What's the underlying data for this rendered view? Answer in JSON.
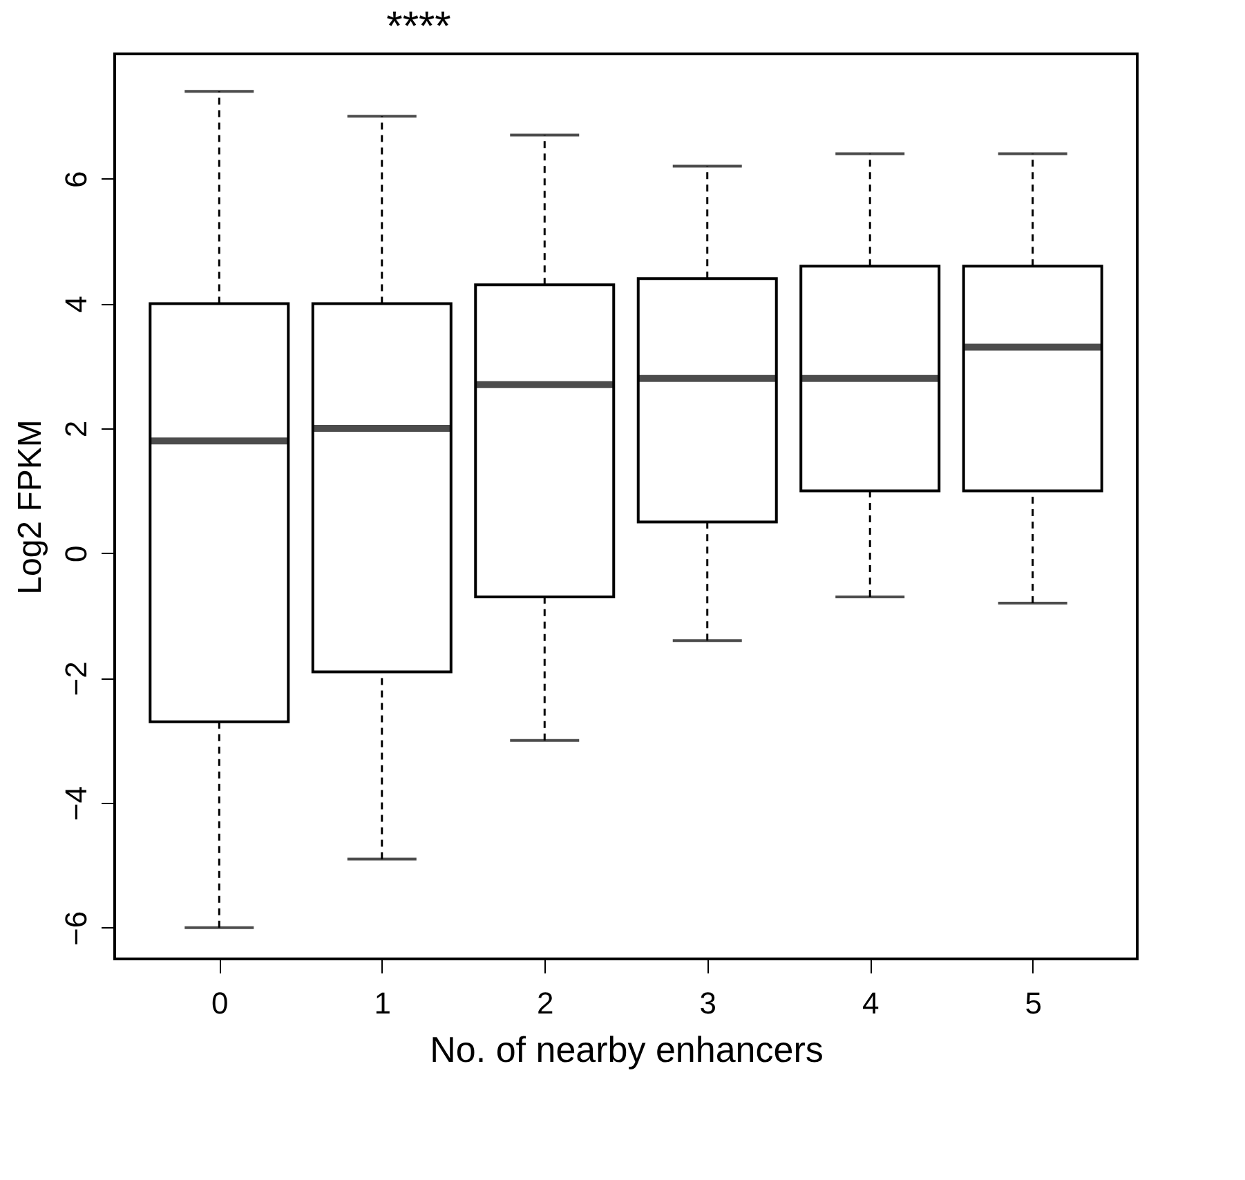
{
  "chart_data": {
    "type": "box",
    "xlabel": "No. of nearby enhancers",
    "ylabel": "Log2 FPKM",
    "categories": [
      "0",
      "1",
      "2",
      "3",
      "4",
      "5"
    ],
    "boxes": [
      {
        "low": -6.0,
        "q1": -2.7,
        "median": 1.8,
        "q3": 4.0,
        "high": 7.4
      },
      {
        "low": -4.9,
        "q1": -1.9,
        "median": 2.0,
        "q3": 4.0,
        "high": 7.0
      },
      {
        "low": -3.0,
        "q1": -0.7,
        "median": 2.7,
        "q3": 4.3,
        "high": 6.7
      },
      {
        "low": -1.4,
        "q1": 0.5,
        "median": 2.8,
        "q3": 4.4,
        "high": 6.2
      },
      {
        "low": -0.7,
        "q1": 1.0,
        "median": 2.8,
        "q3": 4.6,
        "high": 6.4
      },
      {
        "low": -0.8,
        "q1": 1.0,
        "median": 3.3,
        "q3": 4.6,
        "high": 6.4
      }
    ],
    "ylim": [
      -6.5,
      8.0
    ],
    "yticks": [
      -6,
      -4,
      -2,
      0,
      2,
      4,
      6
    ],
    "grid": false,
    "annotations": [
      "****"
    ]
  }
}
